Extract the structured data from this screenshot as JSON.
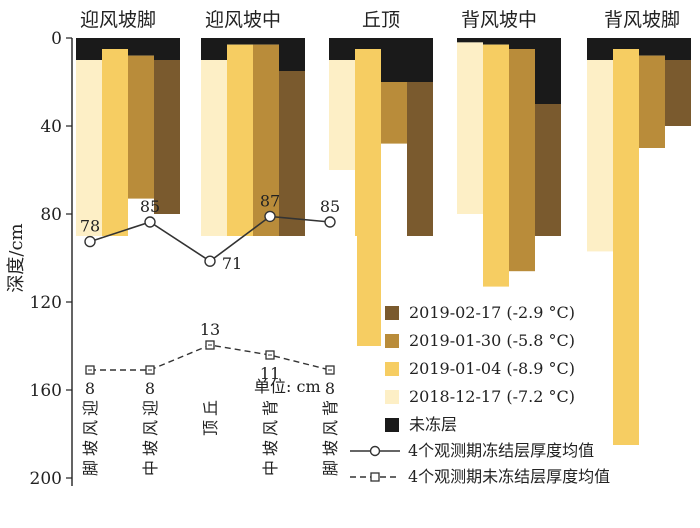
{
  "chart_data": [
    {
      "type": "bar",
      "categories": [
        "迎风坡脚",
        "迎风坡中",
        "丘顶",
        "背风坡中",
        "背风坡脚"
      ],
      "ylabel": "深度/cm",
      "ylim": [
        0,
        200
      ],
      "yticks": [
        0,
        40,
        80,
        120,
        160,
        200
      ],
      "y_inverted": true,
      "series": [
        {
          "name": "2018-12-17 (-7.2 °C)",
          "color": "#fdefc6",
          "values": [
            [
              10,
              90
            ],
            [
              10,
              100
            ],
            [
              10,
              60
            ],
            [
              2,
              80
            ],
            [
              10,
              97
            ]
          ]
        },
        {
          "name": "2019-01-04 (-8.9 °C)",
          "color": "#f6cd62",
          "values": [
            [
              5,
              100
            ],
            [
              3,
              90
            ],
            [
              5,
              140
            ],
            [
              3,
              113
            ],
            [
              5,
              185
            ]
          ]
        },
        {
          "name": "2019-01-30 (-5.8 °C)",
          "color": "#b98c3a",
          "values": [
            [
              8,
              73
            ],
            [
              3,
              90
            ],
            [
              20,
              48
            ],
            [
              5,
              106
            ],
            [
              8,
              50
            ]
          ]
        },
        {
          "name": "2019-02-17 (-2.9 °C)",
          "color": "#7a5a2e",
          "values": [
            [
              10,
              80
            ],
            [
              15,
              90
            ],
            [
              20,
              90
            ],
            [
              30,
              90
            ],
            [
              10,
              40
            ]
          ]
        }
      ],
      "unfrozen_layer": {
        "name": "未冻层",
        "color": "#1a1a1a"
      },
      "legend_position": "bottom-right"
    },
    {
      "type": "line",
      "categories": [
        "迎风坡脚",
        "迎风坡中",
        "丘顶",
        "背风坡中",
        "背风坡脚"
      ],
      "unit_label": "单位: cm",
      "series": [
        {
          "name": "4个观测期冻结层厚度均值",
          "style": "solid-circle",
          "values": [
            78,
            85,
            71,
            87,
            85
          ]
        },
        {
          "name": "4个观测期未冻结层厚度均值",
          "style": "dashed-square",
          "values": [
            8,
            8,
            13,
            11,
            8
          ]
        }
      ]
    }
  ]
}
